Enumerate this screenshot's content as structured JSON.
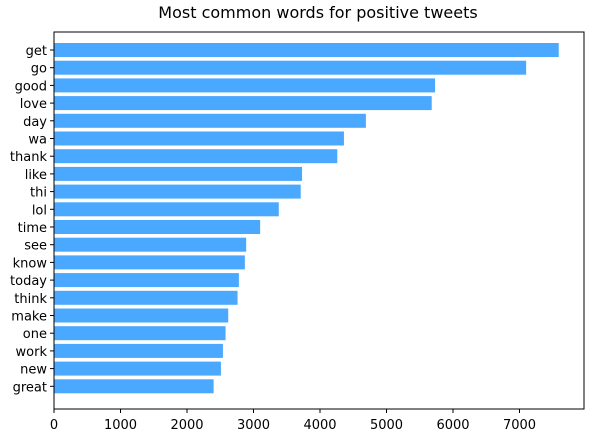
{
  "chart_data": {
    "type": "bar",
    "orientation": "horizontal",
    "title": "Most common words for positive tweets",
    "xlabel": "",
    "ylabel": "",
    "bar_color": "#4aa8ff",
    "categories": [
      "get",
      "go",
      "good",
      "love",
      "day",
      "wa",
      "thank",
      "like",
      "thi",
      "lol",
      "time",
      "see",
      "know",
      "today",
      "think",
      "make",
      "one",
      "work",
      "new",
      "great"
    ],
    "values": [
      7590,
      7100,
      5730,
      5680,
      4690,
      4360,
      4260,
      3730,
      3710,
      3380,
      3100,
      2890,
      2870,
      2780,
      2760,
      2620,
      2580,
      2540,
      2510,
      2400
    ],
    "xlim": [
      0,
      7970
    ],
    "xticks": [
      0,
      1000,
      2000,
      3000,
      4000,
      5000,
      6000,
      7000
    ],
    "grid": false,
    "legend": "none"
  }
}
